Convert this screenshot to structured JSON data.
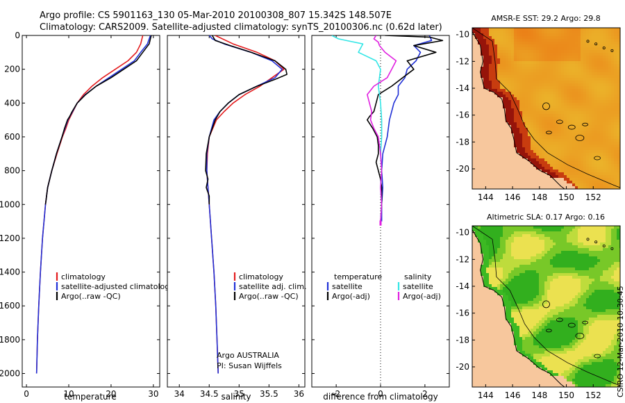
{
  "header": {
    "line1": "Argo profile: CS 5901163_130 05-Mar-2010 20100308_807 15.342S 148.507E",
    "line2": "Climatology: CARS2009. Satellite-adjusted climatology: synTS_20100306.nc (0.62d later)"
  },
  "credit": {
    "org": "Argo AUSTRALIA",
    "pi": "PI: Susan Wijffels",
    "stamp": "CSIRO 12-Mar-2010 10:30:45"
  },
  "colors": {
    "red": "#e31a1c",
    "blue": "#1f2fd6",
    "black": "#000000",
    "cyan": "#33e6e6",
    "magenta": "#e020e0",
    "land": "#f7c79d"
  },
  "chart_data": [
    {
      "type": "line",
      "id": "temperature",
      "xlabel": "temperature",
      "xlim": [
        -1,
        31.5
      ],
      "ylim": [
        2080,
        0
      ],
      "xticks": [
        "0",
        "10",
        "20",
        "30"
      ],
      "xtick_values": [
        0,
        10,
        20,
        30
      ],
      "yticks": [
        "0",
        "200",
        "400",
        "600",
        "800",
        "1000",
        "1200",
        "1400",
        "1600",
        "1800",
        "2000"
      ],
      "ytick_values": [
        0,
        200,
        400,
        600,
        800,
        1000,
        1200,
        1400,
        1600,
        1800,
        2000
      ],
      "legend": [
        "climatology",
        "satellite-adjusted climatology",
        "Argo(..raw -QC)"
      ],
      "series": [
        {
          "name": "climatology",
          "color": "red",
          "depth": [
            0,
            50,
            100,
            150,
            200,
            250,
            300,
            350,
            400,
            450,
            500,
            550,
            600,
            700,
            800,
            900,
            1000,
            1200,
            1400,
            1600,
            1800,
            2000
          ],
          "values": [
            27.5,
            27,
            26,
            24,
            21,
            18,
            15.5,
            13.5,
            12,
            11,
            10,
            9.3,
            8.5,
            7.2,
            6,
            5,
            4.5,
            3.8,
            3.3,
            2.9,
            2.6,
            2.4
          ]
        },
        {
          "name": "satellite-adjusted climatology",
          "color": "blue",
          "depth": [
            0,
            50,
            100,
            150,
            200,
            250,
            300,
            350,
            400,
            450,
            500,
            550,
            600,
            700,
            800,
            900,
            1000,
            1200,
            1400,
            1600,
            1800,
            2000
          ],
          "values": [
            29.3,
            28.6,
            27,
            25.5,
            22.5,
            19.5,
            16.5,
            13.9,
            12,
            10.9,
            9.8,
            9.1,
            8.4,
            7.1,
            6,
            5,
            4.5,
            3.8,
            3.3,
            2.9,
            2.6,
            2.4
          ]
        },
        {
          "name": "Argo(..raw -QC)",
          "color": "black",
          "depth": [
            0,
            50,
            100,
            150,
            200,
            250,
            300,
            350,
            400,
            450,
            480,
            500,
            550,
            600,
            700,
            800,
            900,
            1000
          ],
          "values": [
            29.5,
            29,
            27.5,
            26,
            23,
            20,
            16.5,
            14,
            12,
            10.8,
            10.2,
            9.7,
            9,
            8.4,
            7.1,
            6,
            5,
            4.5
          ]
        }
      ]
    },
    {
      "type": "line",
      "id": "salinity",
      "xlabel": "salinity",
      "xlim": [
        33.8,
        36.1
      ],
      "ylim": [
        2080,
        0
      ],
      "xticks": [
        "34",
        "34.5",
        "35",
        "35.5",
        "36"
      ],
      "xtick_values": [
        34,
        34.5,
        35,
        35.5,
        36
      ],
      "legend": [
        "climatology",
        "satellite adj. clim.",
        "Argo(..raw -QC)"
      ],
      "series": [
        {
          "name": "climatology",
          "color": "red",
          "depth": [
            0,
            50,
            100,
            150,
            200,
            250,
            300,
            350,
            400,
            450,
            500,
            600,
            700,
            800,
            900,
            1000,
            1200,
            1400,
            1600,
            1800,
            2000
          ],
          "values": [
            34.6,
            34.9,
            35.3,
            35.6,
            35.75,
            35.55,
            35.35,
            35.1,
            34.9,
            34.75,
            34.62,
            34.5,
            34.47,
            34.46,
            34.48,
            34.5,
            34.54,
            34.58,
            34.61,
            34.63,
            34.65
          ]
        },
        {
          "name": "satellite adj. clim.",
          "color": "blue",
          "depth": [
            0,
            20,
            50,
            100,
            150,
            200,
            250,
            300,
            350,
            400,
            450,
            500,
            600,
            700,
            800,
            900,
            1000,
            1200,
            1400,
            1600,
            1800,
            2000
          ],
          "values": [
            34.5,
            34.55,
            34.75,
            35.2,
            35.55,
            35.72,
            35.6,
            35.3,
            35.0,
            34.82,
            34.68,
            34.58,
            34.5,
            34.46,
            34.46,
            34.48,
            34.5,
            34.54,
            34.58,
            34.61,
            34.63,
            34.65
          ]
        },
        {
          "name": "Argo(..raw -QC)",
          "color": "black",
          "depth": [
            0,
            30,
            60,
            100,
            150,
            200,
            230,
            260,
            300,
            350,
            400,
            450,
            500,
            550,
            600,
            700,
            800,
            850,
            900,
            950,
            1000
          ],
          "values": [
            34.55,
            34.6,
            34.85,
            35.2,
            35.6,
            35.78,
            35.8,
            35.6,
            35.3,
            35.0,
            34.82,
            34.68,
            34.6,
            34.55,
            34.5,
            34.45,
            34.44,
            34.48,
            34.45,
            34.5,
            34.5
          ]
        }
      ]
    },
    {
      "type": "line",
      "id": "difference",
      "xlabel": "difference from climatology",
      "xlim": [
        -3.1,
        3.1
      ],
      "ylim": [
        2080,
        0
      ],
      "xticks": [
        "-2",
        "0",
        "2"
      ],
      "xtick_values": [
        -2,
        0,
        2
      ],
      "legend_headers": [
        "temperature",
        "salinity"
      ],
      "legend": [
        "satellite",
        "Argo(-adj)",
        "satellite",
        "Argo(-adj)"
      ],
      "series": [
        {
          "name": "temperature satellite",
          "color": "blue",
          "depth": [
            0,
            30,
            60,
            100,
            150,
            200,
            250,
            300,
            350,
            400,
            450,
            500,
            600,
            700,
            800,
            900,
            1000,
            1100
          ],
          "values": [
            2.2,
            2.3,
            1.5,
            1.8,
            1.6,
            1.2,
            1.1,
            0.8,
            0.8,
            0.6,
            0.5,
            0.4,
            0.3,
            0.1,
            0.05,
            0.1,
            0.05,
            0.05
          ]
        },
        {
          "name": "temperature Argo(-adj)",
          "color": "black",
          "depth": [
            0,
            10,
            30,
            60,
            100,
            150,
            200,
            250,
            300,
            350,
            400,
            450,
            480,
            500,
            550,
            600,
            650,
            700,
            750,
            800,
            850,
            900,
            1000,
            1100
          ],
          "values": [
            0.2,
            2.2,
            2.8,
            1.5,
            2.5,
            1.2,
            1.5,
            1.0,
            0.5,
            -0.1,
            -0.2,
            -0.3,
            -0.5,
            -0.6,
            -0.35,
            -0.15,
            -0.1,
            -0.1,
            -0.2,
            -0.1,
            0.0,
            0.05,
            0.05,
            0.0
          ]
        },
        {
          "name": "salinity satellite",
          "color": "cyan",
          "depth": [
            0,
            20,
            50,
            100,
            150,
            200,
            300,
            400,
            500,
            600,
            700,
            800,
            900,
            1000,
            1100
          ],
          "values": [
            -2.2,
            -1.9,
            -0.8,
            -1.0,
            -0.2,
            0.0,
            -0.1,
            0.0,
            0.05,
            0.05,
            0.0,
            0.05,
            0.0,
            0.05,
            0.0
          ]
        },
        {
          "name": "salinity Argo(-adj)",
          "color": "magenta",
          "depth": [
            0,
            20,
            40,
            60,
            100,
            150,
            200,
            250,
            300,
            350,
            400,
            450,
            500,
            550,
            600,
            700,
            800,
            900,
            1000,
            1100
          ],
          "values": [
            -0.2,
            -0.3,
            -0.1,
            -0.05,
            0.2,
            0.7,
            0.5,
            0.3,
            -0.3,
            -0.6,
            -0.5,
            -0.4,
            -0.45,
            -0.3,
            -0.1,
            0.0,
            0.05,
            0.0,
            0.05,
            0.0
          ]
        }
      ]
    },
    {
      "type": "heatmap",
      "id": "sst_map",
      "title": "AMSR-E SST: 29.2 Argo: 29.8",
      "xlim": [
        143,
        154
      ],
      "ylim": [
        -21.5,
        -9.5
      ],
      "xticks": [
        "144",
        "146",
        "148",
        "150",
        "152"
      ],
      "xtick_values": [
        144,
        146,
        148,
        150,
        152
      ],
      "yticks": [
        "-10",
        "-12",
        "-14",
        "-16",
        "-18",
        "-20"
      ],
      "ytick_values": [
        -10,
        -12,
        -14,
        -16,
        -18,
        -20
      ],
      "argo_position": [
        148.5,
        -15.34
      ]
    },
    {
      "type": "heatmap",
      "id": "sla_map",
      "title": "Altimetric SLA: 0.17 Argo: 0.16",
      "xlim": [
        143,
        154
      ],
      "ylim": [
        -21.5,
        -9.5
      ],
      "xticks": [
        "144",
        "146",
        "148",
        "150",
        "152"
      ],
      "xtick_values": [
        144,
        146,
        148,
        150,
        152
      ],
      "yticks": [
        "-10",
        "-12",
        "-14",
        "-16",
        "-18",
        "-20"
      ],
      "ytick_values": [
        -10,
        -12,
        -14,
        -16,
        -18,
        -20
      ],
      "argo_position": [
        148.5,
        -15.34
      ]
    }
  ]
}
